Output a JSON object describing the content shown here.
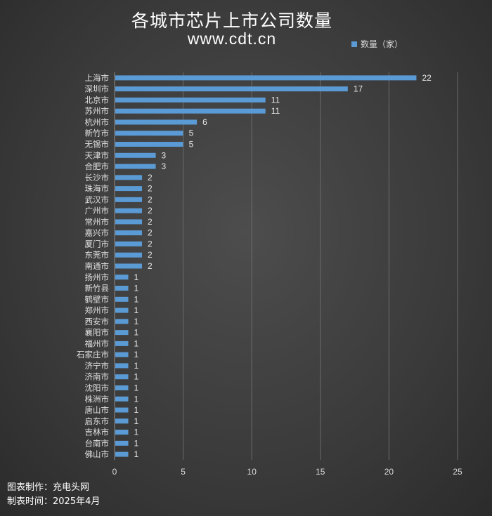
{
  "header": {
    "title": "各城市芯片上市公司数量",
    "subtitle": "www.cdt.cn"
  },
  "footer": {
    "made_by": "图表制作：充电头网",
    "made_time": "制表时间：2025年4月"
  },
  "colors": {
    "bar": "#5b9bd5",
    "grid": "#6b6b6b"
  },
  "chart_data": {
    "type": "bar",
    "orientation": "horizontal",
    "title": "各城市芯片上市公司数量",
    "subtitle": "www.cdt.cn",
    "categories": [
      "上海市",
      "深圳市",
      "北京市",
      "苏州市",
      "杭州市",
      "新竹市",
      "无锡市",
      "天津市",
      "合肥市",
      "长沙市",
      "珠海市",
      "武汉市",
      "广州市",
      "常州市",
      "嘉兴市",
      "厦门市",
      "东莞市",
      "南通市",
      "扬州市",
      "新竹县",
      "鹤壁市",
      "郑州市",
      "西安市",
      "襄阳市",
      "福州市",
      "石家庄市",
      "济宁市",
      "济南市",
      "沈阳市",
      "株洲市",
      "唐山市",
      "启东市",
      "吉林市",
      "台南市",
      "佛山市"
    ],
    "series": [
      {
        "name": "数量（家）",
        "values": [
          22,
          17,
          11,
          11,
          6,
          5,
          5,
          3,
          3,
          2,
          2,
          2,
          2,
          2,
          2,
          2,
          2,
          2,
          1,
          1,
          1,
          1,
          1,
          1,
          1,
          1,
          1,
          1,
          1,
          1,
          1,
          1,
          1,
          1,
          1
        ]
      }
    ],
    "xlim": [
      0,
      25
    ],
    "xticks": [
      0,
      5,
      10,
      15,
      20,
      25
    ],
    "grid": "vertical",
    "legend_position": "top-right",
    "data_labels": true
  }
}
